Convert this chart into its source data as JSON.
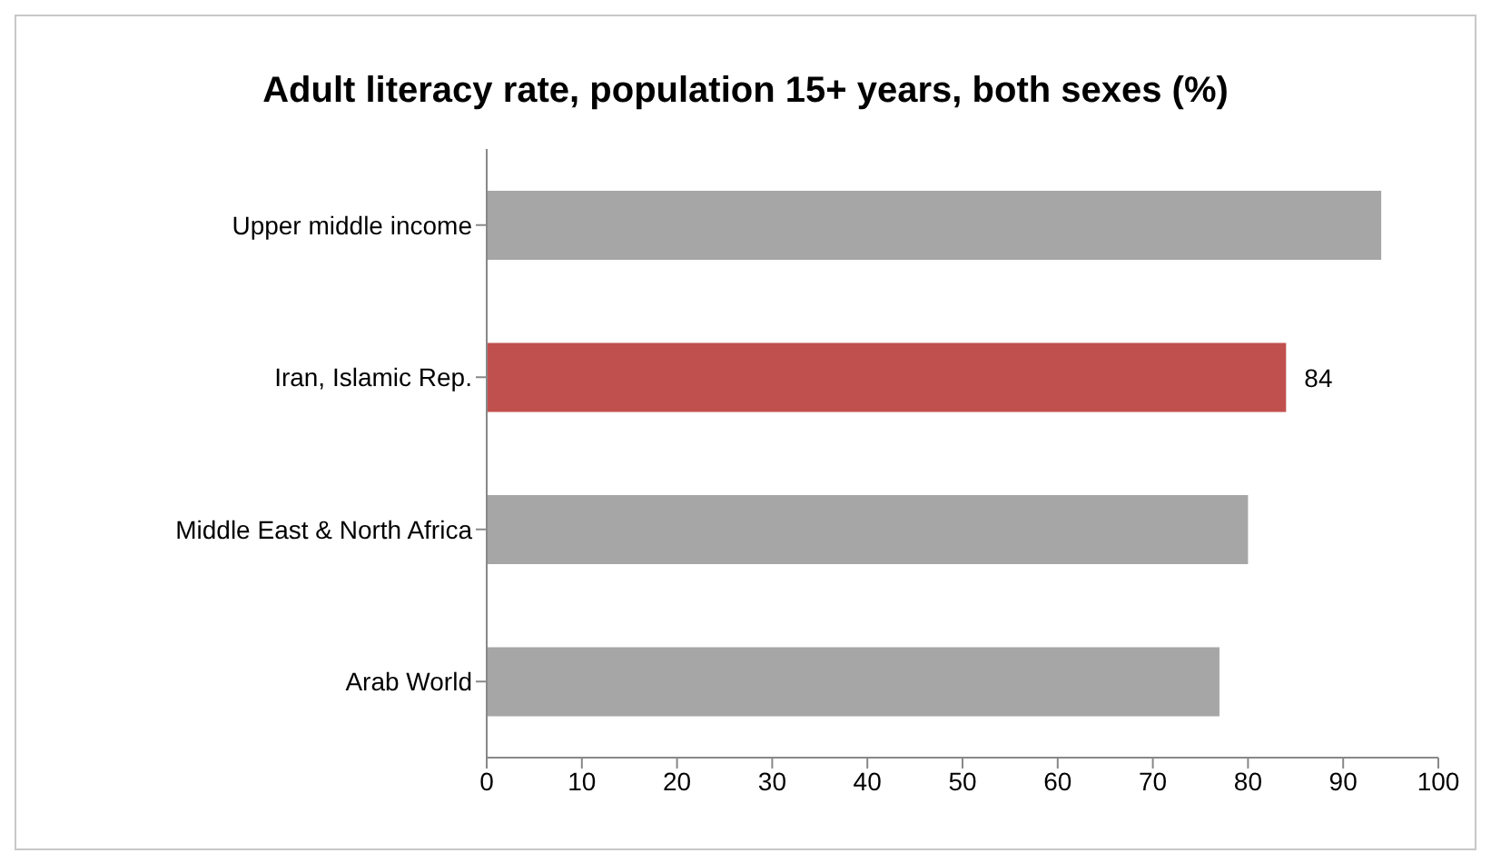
{
  "chart_data": {
    "type": "bar",
    "orientation": "horizontal",
    "title": "Adult literacy rate, population 15+ years, both sexes (%)",
    "categories": [
      "Upper middle income",
      "Iran, Islamic Rep.",
      "Middle East & North Africa",
      "Arab World"
    ],
    "values": [
      94,
      84,
      80,
      77
    ],
    "colors": [
      "#a6a6a6",
      "#c0504d",
      "#a6a6a6",
      "#a6a6a6"
    ],
    "value_labels": [
      null,
      "84",
      null,
      null
    ],
    "xlim": [
      0,
      100
    ],
    "xticks": [
      0,
      10,
      20,
      30,
      40,
      50,
      60,
      70,
      80,
      90,
      100
    ],
    "grid": false,
    "legend": false
  }
}
